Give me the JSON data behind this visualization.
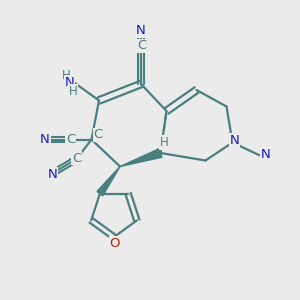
{
  "bg_color": "#ebebeb",
  "bond_color": "#4a7f7f",
  "bond_width": 1.6,
  "atom_colors": {
    "N": "#1818cc",
    "O": "#cc1800",
    "C": "#4a7f7f",
    "H": "#4a7f7f"
  },
  "font_size": 9.5
}
